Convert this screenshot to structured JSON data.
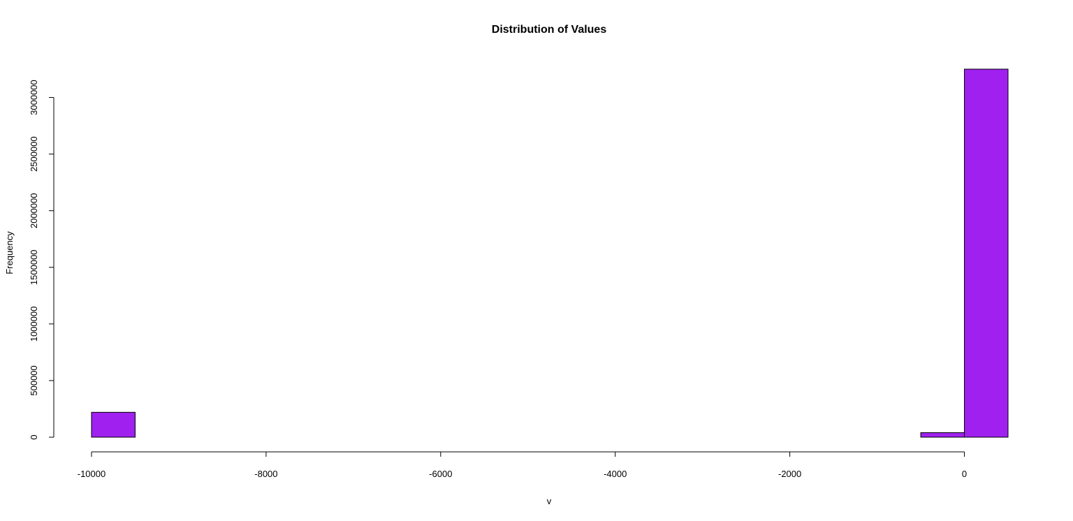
{
  "chart_data": {
    "type": "bar",
    "title": "Distribution of Values",
    "xlabel": "v",
    "ylabel": "Frequency",
    "bins": [
      {
        "x0": -10000,
        "x1": -9500,
        "count": 220000
      },
      {
        "x0": -9500,
        "x1": -9000,
        "count": 0
      },
      {
        "x0": -9000,
        "x1": -8500,
        "count": 0
      },
      {
        "x0": -8500,
        "x1": -8000,
        "count": 0
      },
      {
        "x0": -8000,
        "x1": -7500,
        "count": 0
      },
      {
        "x0": -7500,
        "x1": -7000,
        "count": 0
      },
      {
        "x0": -7000,
        "x1": -6500,
        "count": 0
      },
      {
        "x0": -6500,
        "x1": -6000,
        "count": 0
      },
      {
        "x0": -6000,
        "x1": -5500,
        "count": 0
      },
      {
        "x0": -5500,
        "x1": -5000,
        "count": 0
      },
      {
        "x0": -5000,
        "x1": -4500,
        "count": 0
      },
      {
        "x0": -4500,
        "x1": -4000,
        "count": 0
      },
      {
        "x0": -4000,
        "x1": -3500,
        "count": 0
      },
      {
        "x0": -3500,
        "x1": -3000,
        "count": 0
      },
      {
        "x0": -3000,
        "x1": -2500,
        "count": 0
      },
      {
        "x0": -2500,
        "x1": -2000,
        "count": 0
      },
      {
        "x0": -2000,
        "x1": -1500,
        "count": 0
      },
      {
        "x0": -1500,
        "x1": -1000,
        "count": 0
      },
      {
        "x0": -1000,
        "x1": -500,
        "count": 0
      },
      {
        "x0": -500,
        "x1": 0,
        "count": 40000
      },
      {
        "x0": 0,
        "x1": 500,
        "count": 3250000
      }
    ],
    "xlim": [
      -10000,
      500
    ],
    "ylim": [
      0,
      3250000
    ],
    "x_ticks": [
      -10000,
      -8000,
      -6000,
      -4000,
      -2000,
      0
    ],
    "x_tick_labels": [
      "-10000",
      "-8000",
      "-6000",
      "-4000",
      "-2000",
      "0"
    ],
    "y_ticks": [
      0,
      500000,
      1000000,
      1500000,
      2000000,
      2500000,
      3000000
    ],
    "y_tick_labels": [
      "0",
      "500000",
      "1000000",
      "1500000",
      "2000000",
      "2500000",
      "3000000"
    ],
    "bar_color": "#a020f0",
    "border_color": "#000000",
    "grid": false,
    "legend": "none"
  }
}
